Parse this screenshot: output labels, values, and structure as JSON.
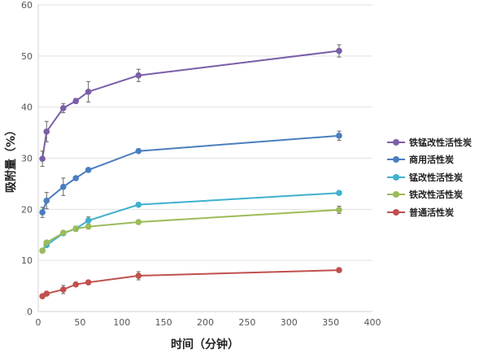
{
  "chart_data": {
    "type": "line",
    "title": "",
    "xlabel": "时间（分钟）",
    "ylabel": "吸附量（%）",
    "xlim": [
      0,
      400
    ],
    "ylim": [
      0,
      60
    ],
    "xticks": [
      0,
      50,
      100,
      150,
      200,
      250,
      300,
      350,
      400
    ],
    "yticks": [
      0,
      10,
      20,
      30,
      40,
      50,
      60
    ],
    "grid": "horizontal",
    "legend_position": "right",
    "x": [
      5,
      10,
      30,
      45,
      60,
      120,
      360
    ],
    "series": [
      {
        "name": "铁锰改性活性炭",
        "color": "#7b5ea7",
        "values": [
          29.9,
          35.2,
          39.8,
          41.2,
          43.0,
          46.2,
          51.0
        ],
        "errors": [
          1.5,
          2.0,
          0.9,
          0.5,
          2.0,
          1.2,
          1.2
        ]
      },
      {
        "name": "商用活性炭",
        "color": "#4a7ebf",
        "values": [
          19.4,
          21.7,
          24.4,
          26.1,
          27.7,
          31.4,
          34.4
        ],
        "errors": [
          1.0,
          1.6,
          1.7,
          0.3,
          0.3,
          0.3,
          0.9
        ]
      },
      {
        "name": "锰改性活性炭",
        "color": "#3fb0cf",
        "values": [
          11.9,
          13.0,
          15.3,
          16.2,
          17.8,
          20.9,
          23.2
        ],
        "errors": [
          0.3,
          0.3,
          0.3,
          0.5,
          0.7,
          0.3,
          0.3
        ]
      },
      {
        "name": "铁改性活性炭",
        "color": "#9bbb59",
        "values": [
          11.9,
          13.5,
          15.4,
          16.2,
          16.6,
          17.5,
          19.9
        ],
        "errors": [
          0.3,
          0.4,
          0.4,
          0.4,
          0.3,
          0.3,
          0.7
        ]
      },
      {
        "name": "普通活性炭",
        "color": "#c0504d",
        "values": [
          3.0,
          3.5,
          4.3,
          5.3,
          5.7,
          7.0,
          8.1
        ],
        "errors": [
          0.3,
          0.3,
          0.8,
          0.3,
          0.3,
          0.8,
          0.3
        ]
      }
    ]
  }
}
